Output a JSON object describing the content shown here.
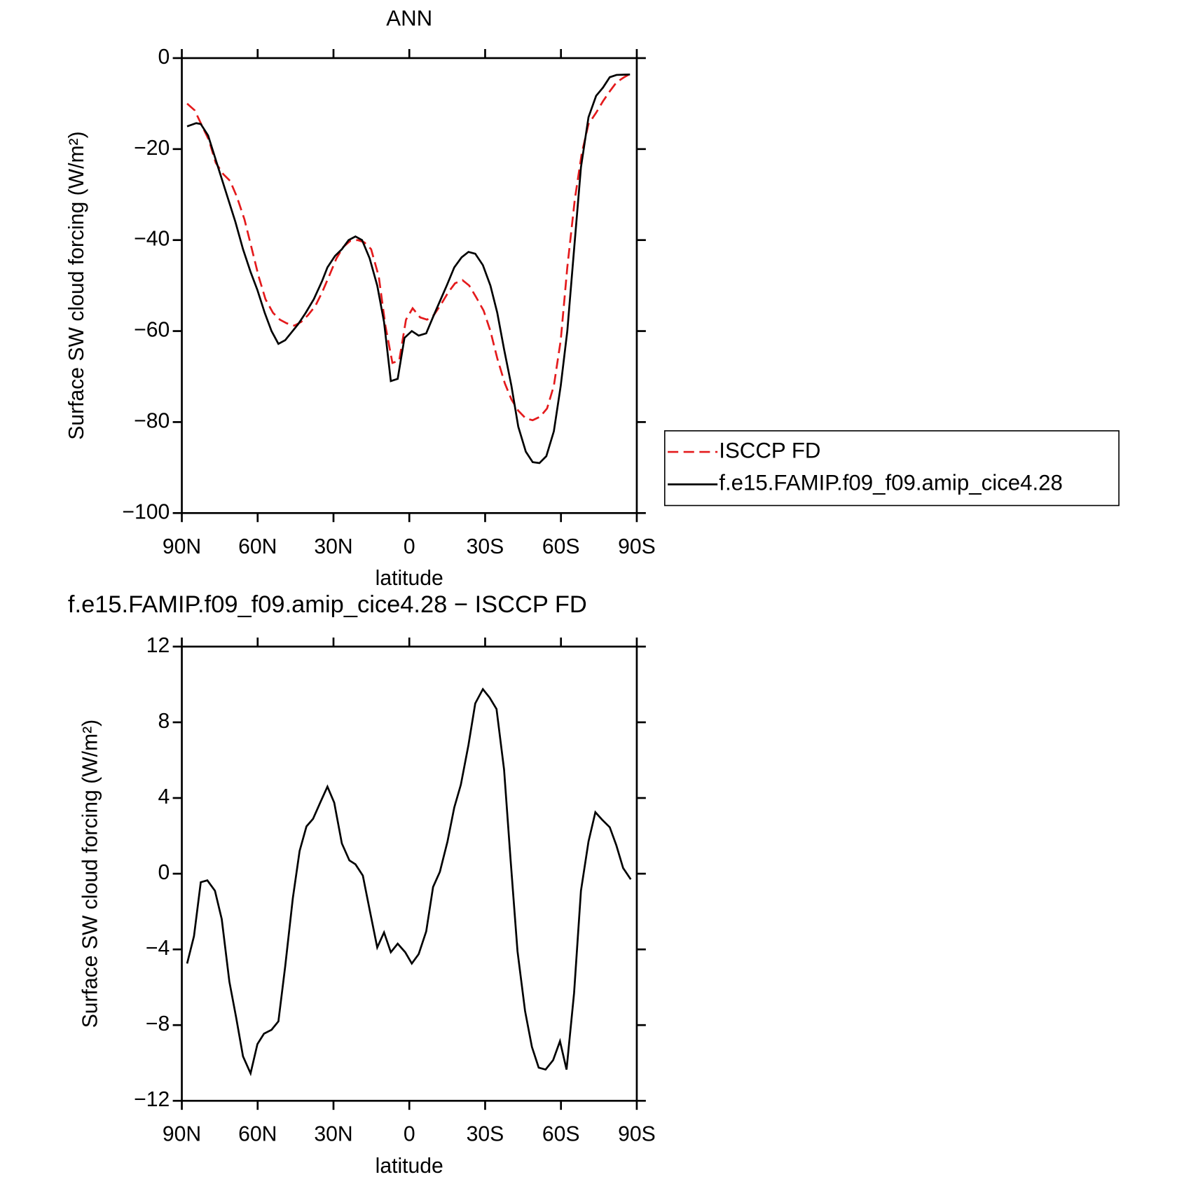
{
  "chart_data": [
    {
      "type": "line",
      "title": "ANN",
      "xlabel": "latitude",
      "ylabel": "Surface SW cloud forcing (W/m²)",
      "xlim": [
        90,
        -90
      ],
      "xticks": [
        {
          "value": 90,
          "label": "90N"
        },
        {
          "value": 60,
          "label": "60N"
        },
        {
          "value": 30,
          "label": "30N"
        },
        0,
        {
          "value": -30,
          "label": "30S"
        },
        {
          "value": -60,
          "label": "60S"
        },
        {
          "value": -90,
          "label": "90S"
        }
      ],
      "ylim": [
        -100,
        0
      ],
      "yticks": [
        {
          "value": -100,
          "label": "−100"
        },
        {
          "value": -80,
          "label": "−80"
        },
        {
          "value": -60,
          "label": "−60"
        },
        {
          "value": -40,
          "label": "−40"
        },
        {
          "value": -20,
          "label": "−20"
        },
        0
      ],
      "legend": "right",
      "series": [
        {
          "name": "ISCCP FD",
          "color": "#e41a1c",
          "dash": "dashed",
          "x": [
            87.9,
            84.9,
            81.9,
            79.3,
            76.6,
            73.6,
            70.9,
            68.2,
            65.2,
            62.5,
            59.6,
            56.9,
            53.9,
            51.2,
            48.5,
            45.5,
            42.8,
            40.1,
            37.2,
            34.5,
            31.8,
            28.8,
            26.1,
            23.4,
            20.4,
            17.8,
            15.1,
            12.1,
            9.4,
            6.7,
            4.0,
            1.3,
            -1.3,
            -4.3,
            -7.0,
            -9.7,
            -12.7,
            -15.4,
            -18.1,
            -21.0,
            -23.7,
            -26.4,
            -29.4,
            -32.1,
            -34.8,
            -37.8,
            -40.4,
            -43.1,
            -46.1,
            -48.8,
            -51.8,
            -54.5,
            -57.2,
            -59.9,
            -62.5,
            -65.5,
            -68.2,
            -70.9,
            -73.9,
            -76.6,
            -79.3,
            -82.0,
            -85.0,
            -87.6
          ],
          "values": [
            -10,
            -11.5,
            -15,
            -18,
            -23,
            -25.5,
            -27,
            -30.5,
            -35.5,
            -41.5,
            -48,
            -53,
            -56,
            -57.5,
            -58.3,
            -58.8,
            -58,
            -56.5,
            -54.5,
            -51.5,
            -48,
            -44,
            -41.5,
            -40.2,
            -40,
            -40.5,
            -42,
            -48,
            -59,
            -67,
            -66.5,
            -57.5,
            -55,
            -57,
            -57.5,
            -56.5,
            -54,
            -51.5,
            -49.5,
            -48.8,
            -50,
            -52.5,
            -55.5,
            -60,
            -66,
            -71.5,
            -75,
            -77.5,
            -79.2,
            -79.6,
            -78.8,
            -77,
            -72,
            -62,
            -46,
            -31,
            -21,
            -14.5,
            -12,
            -9.5,
            -7.3,
            -5.3,
            -4.2,
            -3.4
          ]
        },
        {
          "name": "f.e15.FAMIP.f09_f09.amip_cice4.28",
          "color": "#000000",
          "dash": "solid",
          "x": [
            87.9,
            84.3,
            82.5,
            79.6,
            74.5,
            68.8,
            65.8,
            62.8,
            60.1,
            57.2,
            54.5,
            51.8,
            49.1,
            44.0,
            41.0,
            37.8,
            34.5,
            32.4,
            29.4,
            26.7,
            24.0,
            21.3,
            18.7,
            15.7,
            12.7,
            10.0,
            7.3,
            4.6,
            1.9,
            -1.0,
            -3.7,
            -6.7,
            -9.7,
            -14.8,
            -17.8,
            -20.7,
            -23.4,
            -26.1,
            -29.1,
            -32.1,
            -34.8,
            -37.5,
            -40.4,
            -43.1,
            -46.1,
            -48.8,
            -51.5,
            -54.2,
            -57.2,
            -59.9,
            -62.5,
            -65.2,
            -67.9,
            -70.9,
            -73.9,
            -76.6,
            -79.3,
            -82.0,
            -87.3
          ],
          "values": [
            -15,
            -14.3,
            -14.5,
            -17,
            -26,
            -36,
            -42,
            -47,
            -51,
            -56,
            -60,
            -62.8,
            -62,
            -58.5,
            -56,
            -53,
            -49,
            -46,
            -43.5,
            -42,
            -40,
            -39.2,
            -40,
            -44,
            -50,
            -58,
            -71,
            -70.5,
            -61.5,
            -60,
            -61,
            -60.5,
            -56.5,
            -50,
            -46,
            -43.8,
            -42.6,
            -43,
            -45.5,
            -50,
            -56,
            -64,
            -72,
            -81,
            -86.5,
            -88.8,
            -89,
            -87.5,
            -82,
            -72,
            -60,
            -42,
            -24,
            -13,
            -8.3,
            -6.5,
            -4.2,
            -3.7,
            -3.6
          ]
        }
      ]
    },
    {
      "type": "line",
      "title": "f.e15.FAMIP.f09_f09.amip_cice4.28 − ISCCP FD",
      "xlabel": "latitude",
      "ylabel": "Surface SW cloud forcing (W/m²)",
      "xlim": [
        90,
        -90
      ],
      "xticks": [
        {
          "value": 90,
          "label": "90N"
        },
        {
          "value": 60,
          "label": "60N"
        },
        {
          "value": 30,
          "label": "30N"
        },
        0,
        {
          "value": -30,
          "label": "30S"
        },
        {
          "value": -60,
          "label": "60S"
        },
        {
          "value": -90,
          "label": "90S"
        }
      ],
      "ylim": [
        -12,
        12
      ],
      "yticks": [
        {
          "value": -12,
          "label": "−12"
        },
        {
          "value": -8,
          "label": "−8"
        },
        {
          "value": -4,
          "label": "−4"
        },
        0,
        4,
        8,
        12
      ],
      "series": [
        {
          "color": "#000000",
          "dash": "solid",
          "x": [
            87.9,
            85.2,
            82.5,
            79.9,
            76.9,
            74.2,
            71.2,
            68.5,
            65.8,
            62.8,
            60.1,
            57.5,
            54.5,
            51.8,
            49.1,
            46.1,
            43.4,
            40.7,
            38.1,
            35.1,
            32.4,
            29.7,
            26.7,
            23.7,
            21.3,
            18.4,
            15.7,
            12.7,
            10.0,
            7.3,
            4.6,
            1.6,
            -1.0,
            -3.7,
            -6.7,
            -9.4,
            -12.1,
            -15.1,
            -17.8,
            -20.4,
            -23.4,
            -26.1,
            -29.1,
            -31.8,
            -34.5,
            -37.5,
            -40.1,
            -42.8,
            -45.8,
            -48.5,
            -51.2,
            -53.9,
            -56.9,
            -59.6,
            -62.2,
            -65.2,
            -67.9,
            -70.9,
            -73.6,
            -76.3,
            -79.3,
            -81.9,
            -84.6,
            -87.6
          ],
          "values": [
            -4.75,
            -3.3,
            -0.45,
            -0.35,
            -0.9,
            -2.4,
            -5.7,
            -7.6,
            -9.65,
            -10.55,
            -9.0,
            -8.45,
            -8.25,
            -7.8,
            -4.9,
            -1.3,
            1.2,
            2.5,
            2.9,
            3.8,
            4.6,
            3.75,
            1.6,
            0.7,
            0.5,
            -0.1,
            -1.9,
            -3.9,
            -3.1,
            -4.15,
            -3.7,
            -4.15,
            -4.75,
            -4.25,
            -3.05,
            -0.7,
            0.1,
            1.7,
            3.5,
            4.7,
            6.8,
            9.0,
            9.75,
            9.3,
            8.7,
            5.5,
            0.7,
            -4.1,
            -7.25,
            -9.15,
            -10.25,
            -10.35,
            -9.85,
            -8.85,
            -10.35,
            -6.3,
            -0.9,
            1.7,
            3.25,
            2.85,
            2.45,
            1.5,
            0.3,
            -0.3
          ]
        }
      ]
    }
  ]
}
